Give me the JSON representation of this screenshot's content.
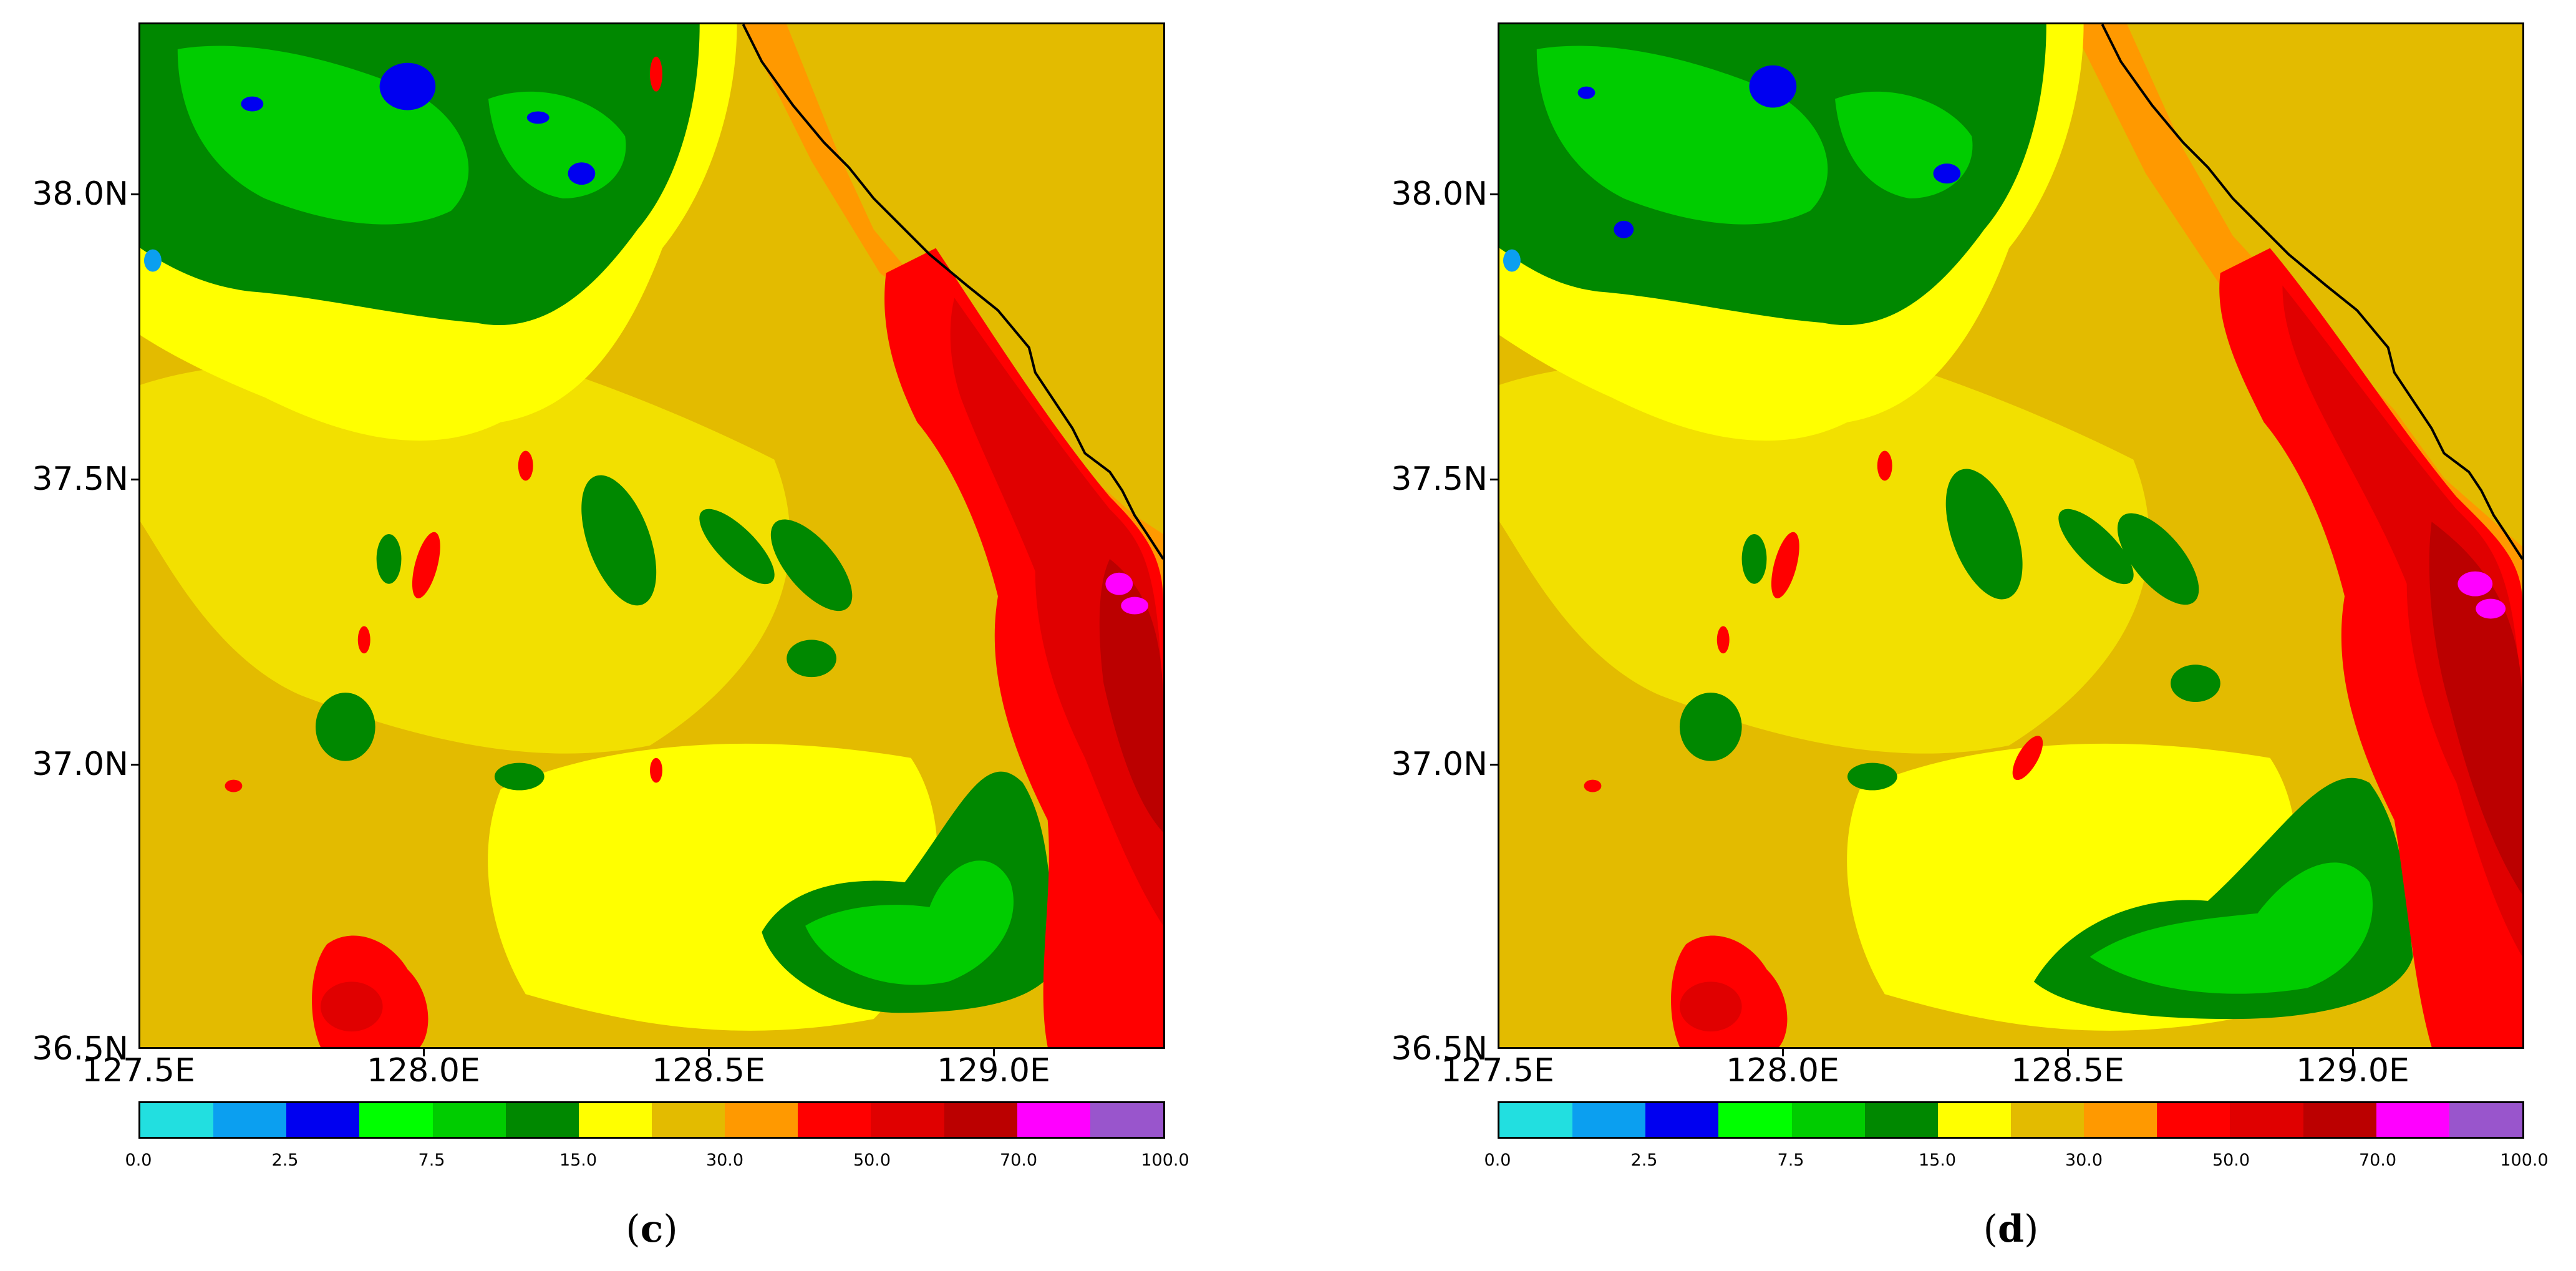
{
  "panels": [
    {
      "label_open": "(",
      "label_letter": "c",
      "label_close": ")",
      "y_ticks": [
        "38.0N",
        "37.5N",
        "37.0N",
        "36.5N"
      ],
      "x_ticks": [
        "127.5E",
        "128.0E",
        "128.5E",
        "129.0E"
      ],
      "colorbar_labels": [
        "0.0",
        "2.5",
        "7.5",
        "15.0",
        "30.0",
        "50.0",
        "70.0",
        "100.0"
      ]
    },
    {
      "label_open": "(",
      "label_letter": "d",
      "label_close": ")",
      "y_ticks": [
        "38.0N",
        "37.5N",
        "37.0N",
        "36.5N"
      ],
      "x_ticks": [
        "127.5E",
        "128.0E",
        "128.5E",
        "129.0E"
      ],
      "colorbar_labels": [
        "0.0",
        "2.5",
        "7.5",
        "15.0",
        "30.0",
        "50.0",
        "70.0",
        "100.0"
      ]
    }
  ],
  "colorbar_colors": [
    "#22dfe0",
    "#0b9ff0",
    "#0000f0",
    "#00ff00",
    "#00cc00",
    "#008800",
    "#ffff00",
    "#e3bb00",
    "#ff9900",
    "#ff0000",
    "#e00000",
    "#bb0000",
    "#ff00ff",
    "#9955cc"
  ],
  "map_extent": {
    "lon": [
      127.5,
      129.3
    ],
    "lat": [
      36.5,
      38.3
    ]
  }
}
